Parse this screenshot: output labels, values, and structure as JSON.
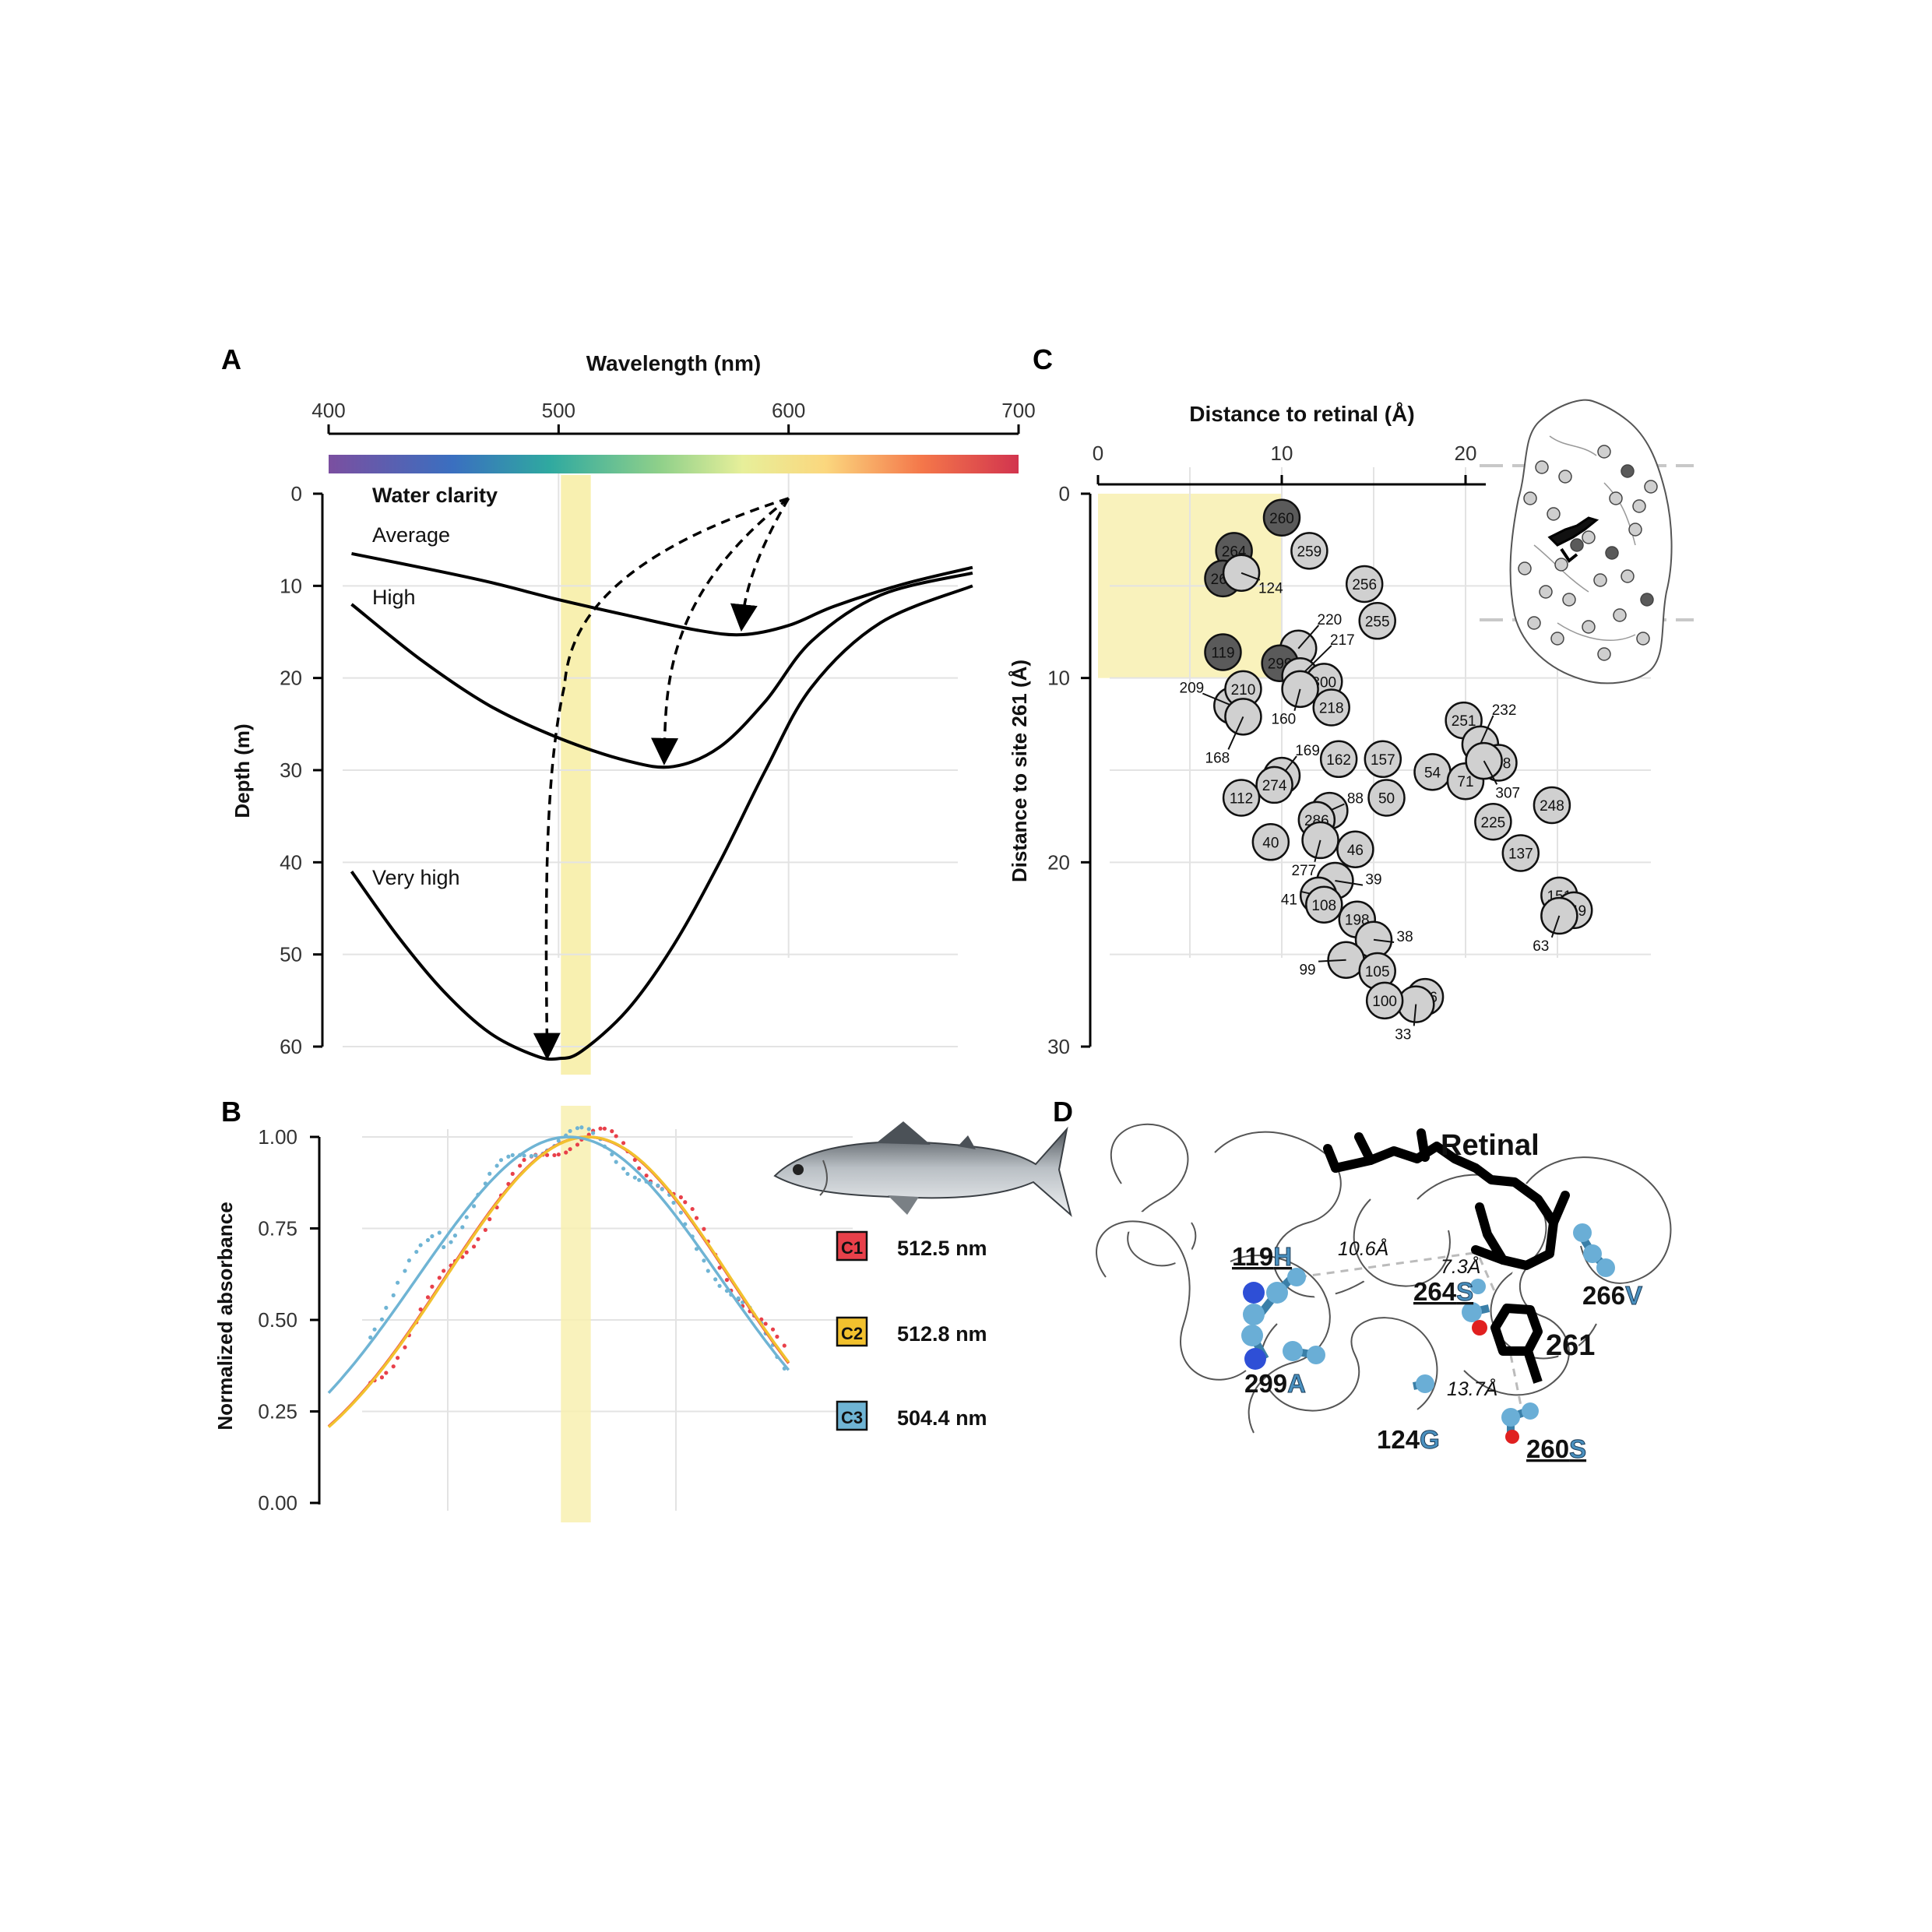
{
  "panels": {
    "a": "A",
    "b": "B",
    "c": "C",
    "d": "D"
  },
  "colors": {
    "c1": "#e8404a",
    "c2": "#f2c12e",
    "c3": "#6fb4d4",
    "highlight": "#f8f0b0",
    "dark_dot": "#5a5a5a",
    "light_dot": "#d0d0d0",
    "residue": "#6aaed6"
  },
  "chart_data": [
    {
      "id": "A",
      "type": "line",
      "title": "Wavelength (nm)",
      "ylabel": "Depth (m)",
      "x_ticks": [
        400,
        500,
        600,
        700
      ],
      "y_ticks": [
        0,
        10,
        20,
        30,
        40,
        50,
        60
      ],
      "xlim": [
        400,
        700
      ],
      "ylim": [
        0,
        60
      ],
      "legend_title": "Water clarity",
      "highlight_band_nm": [
        501,
        514
      ],
      "series": [
        {
          "name": "Average",
          "x": [
            410,
            440,
            470,
            500,
            530,
            560,
            580,
            600,
            620,
            650,
            680
          ],
          "y": [
            6.5,
            8,
            9.6,
            11.5,
            13.2,
            14.8,
            15.3,
            14.3,
            12.2,
            9.8,
            8
          ]
        },
        {
          "name": "High",
          "x": [
            410,
            440,
            470,
            500,
            530,
            550,
            570,
            590,
            610,
            640,
            680
          ],
          "y": [
            12,
            18,
            23,
            26.5,
            29,
            29.6,
            27.5,
            22.5,
            16,
            11,
            8.6
          ]
        },
        {
          "name": "Very high",
          "x": [
            410,
            430,
            450,
            470,
            490,
            500,
            510,
            530,
            550,
            570,
            590,
            610,
            640,
            680
          ],
          "y": [
            41,
            48,
            54,
            58.5,
            61,
            61.3,
            60.5,
            56,
            49,
            40,
            30,
            21,
            14,
            10
          ]
        }
      ],
      "arrows": [
        {
          "from_nm": 600,
          "to_nm": 580,
          "to_depth": 13.5
        },
        {
          "from_nm": 600,
          "to_nm": 546,
          "to_depth": 28
        },
        {
          "from_nm": 600,
          "to_nm": 495,
          "to_depth": 60
        }
      ]
    },
    {
      "id": "B",
      "type": "line",
      "ylabel": "Normalized absorbance",
      "y_ticks": [
        "0.00",
        "0.25",
        "0.50",
        "0.75",
        "1.00"
      ],
      "ylim": [
        0,
        1
      ],
      "xlim": [
        400,
        700
      ],
      "series": [
        {
          "name": "C1",
          "label": "512.5 nm",
          "lambda_max": 512.5
        },
        {
          "name": "C2",
          "label": "512.8 nm",
          "lambda_max": 512.8
        },
        {
          "name": "C3",
          "label": "504.4 nm",
          "lambda_max": 504.4
        }
      ]
    },
    {
      "id": "C",
      "type": "scatter",
      "title": "Distance to retinal (Å)",
      "ylabel": "Distance to site 261 (Å)",
      "x_ticks": [
        0,
        10,
        20
      ],
      "y_ticks": [
        0,
        10,
        20,
        30
      ],
      "xlim": [
        0,
        21
      ],
      "ylim": [
        0,
        30
      ],
      "highlight_box": {
        "x": [
          0,
          10
        ],
        "y": [
          0,
          10
        ]
      },
      "points": [
        {
          "label": "260",
          "x": 10.0,
          "y": 1.3,
          "dark": true
        },
        {
          "label": "264",
          "x": 7.4,
          "y": 3.1,
          "dark": true
        },
        {
          "label": "266",
          "x": 6.8,
          "y": 4.6,
          "dark": true
        },
        {
          "label": "124",
          "x": 7.8,
          "y": 4.3,
          "dark": false,
          "outside": true,
          "lx": 9.4,
          "ly": 5.1
        },
        {
          "label": "259",
          "x": 11.5,
          "y": 3.1,
          "dark": false
        },
        {
          "label": "256",
          "x": 14.5,
          "y": 4.9,
          "dark": false
        },
        {
          "label": "255",
          "x": 15.2,
          "y": 6.9,
          "dark": false
        },
        {
          "label": "119",
          "x": 6.8,
          "y": 8.6,
          "dark": true
        },
        {
          "label": "220",
          "x": 10.9,
          "y": 8.4,
          "dark": false,
          "outside": true,
          "lx": 12.6,
          "ly": 6.8
        },
        {
          "label": "299",
          "x": 9.9,
          "y": 9.2,
          "dark": true
        },
        {
          "label": "217",
          "x": 11.0,
          "y": 9.9,
          "dark": false,
          "outside": true,
          "lx": 13.3,
          "ly": 7.9
        },
        {
          "label": "300",
          "x": 12.3,
          "y": 10.2,
          "dark": false
        },
        {
          "label": "209",
          "x": 7.3,
          "y": 11.5,
          "dark": false,
          "outside": true,
          "lx": 5.1,
          "ly": 10.5
        },
        {
          "label": "210",
          "x": 7.9,
          "y": 10.6,
          "dark": false
        },
        {
          "label": "160",
          "x": 11.0,
          "y": 10.6,
          "dark": false,
          "outside": true,
          "lx": 10.1,
          "ly": 12.2
        },
        {
          "label": "218",
          "x": 12.7,
          "y": 11.6,
          "dark": false
        },
        {
          "label": "168",
          "x": 7.9,
          "y": 12.1,
          "dark": false,
          "outside": true,
          "lx": 6.5,
          "ly": 14.3
        },
        {
          "label": "251",
          "x": 19.9,
          "y": 12.3,
          "dark": false
        },
        {
          "label": "232",
          "x": 20.8,
          "y": 13.6,
          "dark": false,
          "outside": true,
          "lx": 22.1,
          "ly": 11.7
        },
        {
          "label": "169",
          "x": 10.0,
          "y": 15.3,
          "dark": false,
          "outside": true,
          "lx": 11.4,
          "ly": 13.9
        },
        {
          "label": "162",
          "x": 13.1,
          "y": 14.4,
          "dark": false
        },
        {
          "label": "157",
          "x": 15.5,
          "y": 14.4,
          "dark": false
        },
        {
          "label": "54",
          "x": 18.2,
          "y": 15.1,
          "dark": false
        },
        {
          "label": "71",
          "x": 20.0,
          "y": 15.6,
          "dark": false
        },
        {
          "label": "308",
          "x": 21.8,
          "y": 14.6,
          "dark": false
        },
        {
          "label": "307",
          "x": 21.0,
          "y": 14.5,
          "dark": false,
          "outside": true,
          "lx": 22.3,
          "ly": 16.2
        },
        {
          "label": "274",
          "x": 9.6,
          "y": 15.8,
          "dark": false
        },
        {
          "label": "112",
          "x": 7.8,
          "y": 16.5,
          "dark": false
        },
        {
          "label": "88",
          "x": 12.6,
          "y": 17.2,
          "dark": false,
          "outside": true,
          "lx": 14.0,
          "ly": 16.5
        },
        {
          "label": "50",
          "x": 15.7,
          "y": 16.5,
          "dark": false
        },
        {
          "label": "248",
          "x": 24.7,
          "y": 16.9,
          "dark": false
        },
        {
          "label": "286",
          "x": 11.9,
          "y": 17.7,
          "dark": false
        },
        {
          "label": "225",
          "x": 21.5,
          "y": 17.8,
          "dark": false
        },
        {
          "label": "40",
          "x": 9.4,
          "y": 18.9,
          "dark": false
        },
        {
          "label": "277",
          "x": 12.1,
          "y": 18.8,
          "dark": false,
          "outside": true,
          "lx": 11.2,
          "ly": 20.4
        },
        {
          "label": "46",
          "x": 14.0,
          "y": 19.3,
          "dark": false
        },
        {
          "label": "137",
          "x": 23.0,
          "y": 19.5,
          "dark": false
        },
        {
          "label": "39",
          "x": 12.9,
          "y": 21.0,
          "dark": false,
          "outside": true,
          "lx": 15.0,
          "ly": 20.9
        },
        {
          "label": "41",
          "x": 12.0,
          "y": 21.8,
          "dark": false,
          "outside": true,
          "lx": 10.4,
          "ly": 22.0
        },
        {
          "label": "108",
          "x": 12.3,
          "y": 22.3,
          "dark": false
        },
        {
          "label": "151",
          "x": 25.1,
          "y": 21.8,
          "dark": false
        },
        {
          "label": "149",
          "x": 25.9,
          "y": 22.6,
          "dark": false
        },
        {
          "label": "63",
          "x": 25.1,
          "y": 22.9,
          "dark": false,
          "outside": true,
          "lx": 24.1,
          "ly": 24.5
        },
        {
          "label": "198",
          "x": 14.1,
          "y": 23.1,
          "dark": false
        },
        {
          "label": "38",
          "x": 15.0,
          "y": 24.2,
          "dark": false,
          "outside": true,
          "lx": 16.7,
          "ly": 24.0
        },
        {
          "label": "99",
          "x": 13.5,
          "y": 25.3,
          "dark": false,
          "outside": true,
          "lx": 11.4,
          "ly": 25.8
        },
        {
          "label": "105",
          "x": 15.2,
          "y": 25.9,
          "dark": false
        },
        {
          "label": "196",
          "x": 17.8,
          "y": 27.3,
          "dark": false
        },
        {
          "label": "33",
          "x": 17.3,
          "y": 27.7,
          "dark": false,
          "outside": true,
          "lx": 16.6,
          "ly": 29.3
        },
        {
          "label": "100",
          "x": 15.6,
          "y": 27.5,
          "dark": false
        }
      ]
    }
  ],
  "panel_d": {
    "retinal": "Retinal",
    "site": "261",
    "residues": [
      {
        "num": "119",
        "aa": "H",
        "underline": true
      },
      {
        "num": "264",
        "aa": "S",
        "underline": true
      },
      {
        "num": "266",
        "aa": "V",
        "underline": false
      },
      {
        "num": "299",
        "aa": "A",
        "underline": false
      },
      {
        "num": "124",
        "aa": "G",
        "underline": false
      },
      {
        "num": "260",
        "aa": "S",
        "underline": true
      }
    ],
    "distances": {
      "d1": "10.6Å",
      "d2": "7.3Å",
      "d3": "13.7Å"
    }
  }
}
